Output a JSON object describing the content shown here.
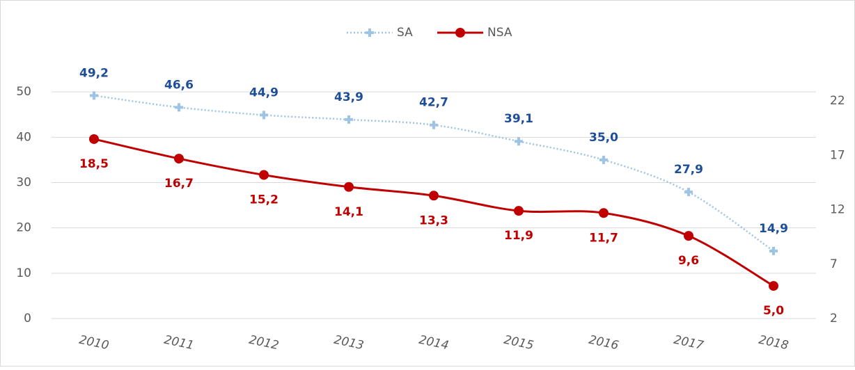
{
  "chart_data": {
    "type": "line",
    "categories": [
      "2010",
      "2011",
      "2012",
      "2013",
      "2014",
      "2015",
      "2016",
      "2017",
      "2018"
    ],
    "series": [
      {
        "name": "SA",
        "color": "#9dc3e6",
        "label_color": "#1f4e99",
        "values": [
          49.2,
          46.6,
          44.9,
          43.9,
          42.7,
          39.1,
          35.0,
          27.9,
          14.9
        ],
        "value_labels": [
          "49,2",
          "46,6",
          "44,9",
          "43,9",
          "42,7",
          "39,1",
          "35,0",
          "27,9",
          "14,9"
        ]
      },
      {
        "name": "NSA",
        "color": "#c00000",
        "label_color": "#c00000",
        "axis": "y2",
        "values": [
          18.5,
          16.7,
          15.2,
          14.1,
          13.3,
          11.9,
          11.7,
          9.6,
          5.0
        ],
        "value_labels": [
          "18,5",
          "16,7",
          "15,2",
          "14,1",
          "13,3",
          "11,9",
          "11,7",
          "9,6",
          "5,0"
        ]
      }
    ],
    "ylim": [
      0,
      60
    ],
    "yticks": [
      0,
      10,
      20,
      30,
      40,
      50
    ],
    "y2lim": [
      2,
      27
    ],
    "y2ticks": [
      2,
      7,
      12,
      17,
      22
    ],
    "grid": true,
    "legend": "top"
  }
}
